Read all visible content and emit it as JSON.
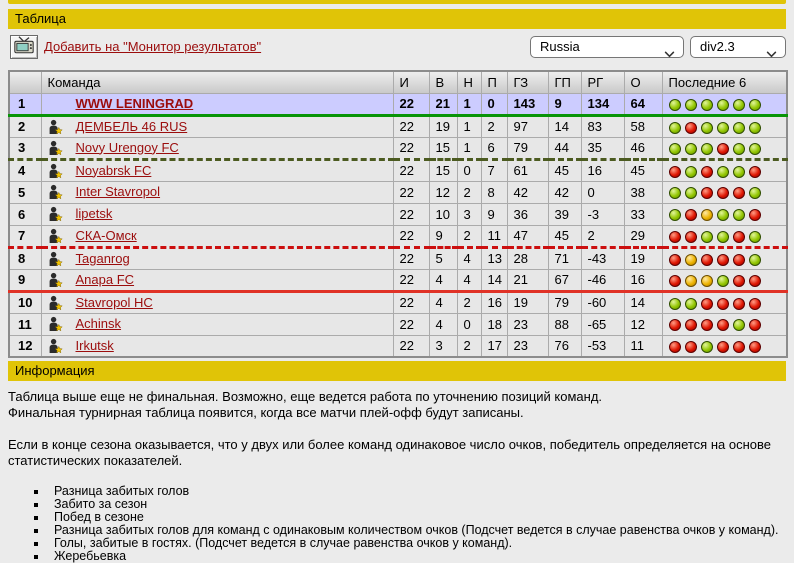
{
  "bars": {
    "table_title": "Таблица",
    "info_title": "Информация"
  },
  "toolbar": {
    "monitor_link_label": "Добавить на \"Монитор результатов\"",
    "country_value": "Russia",
    "division_value": "div2.3"
  },
  "icons": {
    "monitor_button": "tv-icon",
    "team_row": "manager-icon",
    "select_arrow": "chevron-down-icon",
    "last6_win": "green-ball",
    "last6_draw": "yellow-ball",
    "last6_loss": "red-ball"
  },
  "colors": {
    "bar_yellow": "#e0c407",
    "link_red": "#9b0d0d",
    "highlight_row": "#ccccff",
    "ball_green": "#93c602",
    "ball_red": "#df1703",
    "ball_yellow": "#edb301",
    "sep_green": "#089408",
    "sep_olive": "#4c5b21",
    "sep_red_dashed": "#cc0f0f",
    "sep_red_solid": "#e03226"
  },
  "table": {
    "columns": [
      "",
      "Команда",
      "И",
      "В",
      "Н",
      "П",
      "ГЗ",
      "ГП",
      "РГ",
      "О",
      "Последние 6"
    ],
    "rows": [
      {
        "pos": "1",
        "team": "WWW LENINGRAD",
        "has_icon": false,
        "highlight": true,
        "stats": [
          22,
          21,
          1,
          0,
          143,
          9,
          134,
          64
        ],
        "last6": [
          "G",
          "G",
          "G",
          "G",
          "G",
          "G"
        ],
        "separator_after": "green_solid"
      },
      {
        "pos": "2",
        "team": "ДЕМБЕЛЬ 46 RUS",
        "has_icon": true,
        "highlight": false,
        "stats": [
          22,
          19,
          1,
          2,
          97,
          14,
          83,
          58
        ],
        "last6": [
          "G",
          "R",
          "G",
          "G",
          "G",
          "G"
        ],
        "separator_after": ""
      },
      {
        "pos": "3",
        "team": "Novy Urengoy FC",
        "has_icon": true,
        "highlight": false,
        "stats": [
          22,
          15,
          1,
          6,
          79,
          44,
          35,
          46
        ],
        "last6": [
          "G",
          "G",
          "G",
          "R",
          "G",
          "G"
        ],
        "separator_after": "olive_dashed"
      },
      {
        "pos": "4",
        "team": "Noyabrsk FC",
        "has_icon": true,
        "highlight": false,
        "stats": [
          22,
          15,
          0,
          7,
          61,
          45,
          16,
          45
        ],
        "last6": [
          "R",
          "G",
          "R",
          "G",
          "G",
          "R"
        ],
        "separator_after": ""
      },
      {
        "pos": "5",
        "team": "Inter Stavropol",
        "has_icon": true,
        "highlight": false,
        "stats": [
          22,
          12,
          2,
          8,
          42,
          42,
          0,
          38
        ],
        "last6": [
          "G",
          "G",
          "R",
          "R",
          "R",
          "G"
        ],
        "separator_after": ""
      },
      {
        "pos": "6",
        "team": "lipetsk",
        "has_icon": true,
        "highlight": false,
        "stats": [
          22,
          10,
          3,
          9,
          36,
          39,
          -3,
          33
        ],
        "last6": [
          "G",
          "R",
          "Y",
          "G",
          "G",
          "R"
        ],
        "separator_after": ""
      },
      {
        "pos": "7",
        "team": "СКА-Омск",
        "has_icon": true,
        "highlight": false,
        "stats": [
          22,
          9,
          2,
          11,
          47,
          45,
          2,
          29
        ],
        "last6": [
          "R",
          "R",
          "G",
          "G",
          "R",
          "G"
        ],
        "separator_after": "red_dashed"
      },
      {
        "pos": "8",
        "team": "Taganrog",
        "has_icon": true,
        "highlight": false,
        "stats": [
          22,
          5,
          4,
          13,
          28,
          71,
          -43,
          19
        ],
        "last6": [
          "R",
          "Y",
          "R",
          "R",
          "R",
          "G"
        ],
        "separator_after": ""
      },
      {
        "pos": "9",
        "team": "Anapa FC",
        "has_icon": true,
        "highlight": false,
        "stats": [
          22,
          4,
          4,
          14,
          21,
          67,
          -46,
          16
        ],
        "last6": [
          "R",
          "Y",
          "Y",
          "G",
          "R",
          "R"
        ],
        "separator_after": "red_solid"
      },
      {
        "pos": "10",
        "team": "Stavropol HC",
        "has_icon": true,
        "highlight": false,
        "stats": [
          22,
          4,
          2,
          16,
          19,
          79,
          -60,
          14
        ],
        "last6": [
          "G",
          "G",
          "R",
          "R",
          "R",
          "R"
        ],
        "separator_after": ""
      },
      {
        "pos": "11",
        "team": "Achinsk",
        "has_icon": true,
        "highlight": false,
        "stats": [
          22,
          4,
          0,
          18,
          23,
          88,
          -65,
          12
        ],
        "last6": [
          "R",
          "R",
          "R",
          "R",
          "G",
          "R"
        ],
        "separator_after": ""
      },
      {
        "pos": "12",
        "team": "Irkutsk",
        "has_icon": true,
        "highlight": false,
        "stats": [
          22,
          3,
          2,
          17,
          23,
          76,
          -53,
          11
        ],
        "last6": [
          "R",
          "R",
          "G",
          "R",
          "R",
          "R"
        ],
        "separator_after": ""
      }
    ]
  },
  "info": {
    "paragraphs": [
      "Таблица выше еще не финальная. Возможно, еще ведется работа по уточнению позиций команд.\nФинальная турнирная таблица появится, когда все матчи плей-офф будут записаны.",
      "Если в конце сезона оказывается, что у двух или более команд одинаковое число очков, победитель определяется на основе статистических показателей."
    ],
    "bullets": [
      "Разница забитых голов",
      "Забито за сезон",
      "Побед в сезоне",
      "Разница забитых голов для команд с одинаковым количеством очков (Подсчет ведется в случае равенства очков у команд).",
      "Голы, забитые в гостях. (Подсчет ведется в случае равенства очков у команд).",
      "Жеребьевка"
    ]
  }
}
